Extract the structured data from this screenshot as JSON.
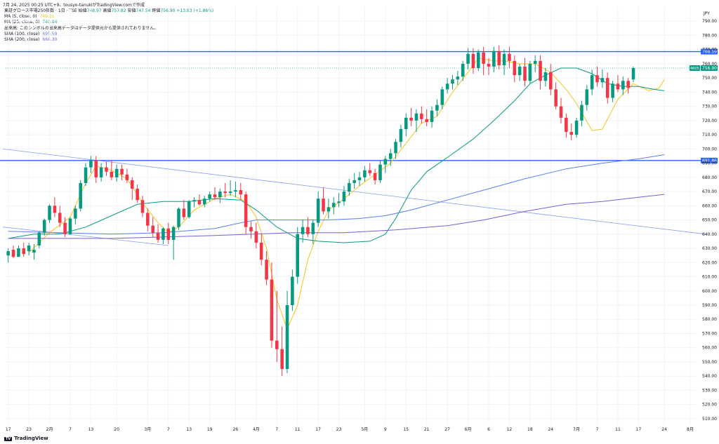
{
  "header": {
    "stamp": "7月 24, 2025 00:25 UTC+9、tousyo-tanukiがTradingView.comで作成"
  },
  "legend": {
    "symbol": "東証グロース市場250指数 · 1日 · TSE",
    "open_label": "始値",
    "open": "748.97",
    "high_label": "高値",
    "high": "757.82",
    "low_label": "安値",
    "low": "747.54",
    "close_label": "終値",
    "close": "756.90",
    "change": "+13.83 (+1.86%)",
    "rows": [
      {
        "label": "MA (5, close, 0)",
        "value": "749.21",
        "color": "#f5c518"
      },
      {
        "label": "MA (25, close, 0)",
        "value": "740.84",
        "color": "#089981"
      },
      {
        "label": "出来高: このシンボルの出来高データはデータ提供元から提供されておりません。",
        "value": "",
        "color": "#131722"
      },
      {
        "label": "SMA (100, close)",
        "value": "695.59",
        "color": "#5b7ff1"
      },
      {
        "label": "SMA (200, close)",
        "value": "668.30",
        "color": "#7c5cd6"
      }
    ]
  },
  "branding": {
    "logo_text": "TradingView",
    "logo_mark": "TV"
  },
  "chart_data": {
    "type": "candlestick",
    "currency": "JPY",
    "ylim": [
      506,
      800
    ],
    "y_ticks": [
      510,
      520,
      530,
      540,
      550,
      560,
      570,
      580,
      590,
      600,
      610,
      620,
      630,
      640,
      650,
      660,
      670,
      680,
      690,
      700,
      710,
      720,
      730,
      740,
      750,
      760,
      770,
      780,
      790
    ],
    "x_ticks": [
      {
        "label": "17",
        "i": 0
      },
      {
        "label": "23",
        "i": 4
      },
      {
        "label": "2月",
        "i": 8
      },
      {
        "label": "7",
        "i": 12
      },
      {
        "label": "13",
        "i": 16
      },
      {
        "label": "20",
        "i": 21
      },
      {
        "label": "3月",
        "i": 27
      },
      {
        "label": "7",
        "i": 31
      },
      {
        "label": "13",
        "i": 35
      },
      {
        "label": "19",
        "i": 39
      },
      {
        "label": "26",
        "i": 44
      },
      {
        "label": "4月",
        "i": 48
      },
      {
        "label": "7",
        "i": 52
      },
      {
        "label": "11",
        "i": 56
      },
      {
        "label": "17",
        "i": 60
      },
      {
        "label": "23",
        "i": 64
      },
      {
        "label": "5月",
        "i": 69
      },
      {
        "label": "9",
        "i": 73
      },
      {
        "label": "15",
        "i": 77
      },
      {
        "label": "21",
        "i": 81
      },
      {
        "label": "27",
        "i": 85
      },
      {
        "label": "6月",
        "i": 89
      },
      {
        "label": "6",
        "i": 93
      },
      {
        "label": "12",
        "i": 97
      },
      {
        "label": "18",
        "i": 101
      },
      {
        "label": "24",
        "i": 105
      },
      {
        "label": "7月",
        "i": 110
      },
      {
        "label": "7",
        "i": 114
      },
      {
        "label": "11",
        "i": 118
      },
      {
        "label": "17",
        "i": 122
      },
      {
        "label": "24",
        "i": 127
      },
      {
        "label": "8月",
        "i": 132
      }
    ],
    "candles": [
      [
        625,
        630,
        620,
        628
      ],
      [
        629,
        632,
        623,
        624
      ],
      [
        624,
        632,
        624,
        630
      ],
      [
        630,
        634,
        624,
        626
      ],
      [
        628,
        634,
        625,
        632
      ],
      [
        627,
        633,
        622,
        629
      ],
      [
        632,
        642,
        630,
        641
      ],
      [
        641,
        651,
        639,
        650
      ],
      [
        650,
        661,
        648,
        660
      ],
      [
        660,
        666,
        652,
        655
      ],
      [
        655,
        660,
        645,
        648
      ],
      [
        648,
        652,
        638,
        640
      ],
      [
        640,
        652,
        640,
        651
      ],
      [
        651,
        660,
        647,
        658
      ],
      [
        658,
        678,
        656,
        676
      ],
      [
        676,
        690,
        674,
        687
      ],
      [
        687,
        695,
        683,
        692
      ],
      [
        692,
        695,
        676,
        680
      ],
      [
        680,
        690,
        677,
        687
      ],
      [
        687,
        691,
        681,
        684
      ],
      [
        684,
        692,
        678,
        680
      ],
      [
        680,
        689,
        677,
        686
      ],
      [
        686,
        689,
        678,
        682
      ],
      [
        682,
        686,
        676,
        678
      ],
      [
        678,
        680,
        664,
        672
      ],
      [
        672,
        675,
        662,
        664
      ],
      [
        664,
        667,
        652,
        655
      ],
      [
        655,
        658,
        642,
        646
      ],
      [
        646,
        652,
        638,
        641
      ],
      [
        641,
        647,
        634,
        636
      ],
      [
        636,
        645,
        633,
        644
      ],
      [
        644,
        648,
        633,
        636
      ],
      [
        636,
        646,
        622,
        645
      ],
      [
        645,
        659,
        643,
        658
      ],
      [
        658,
        664,
        650,
        652
      ],
      [
        652,
        664,
        651,
        663
      ],
      [
        663,
        666,
        659,
        664
      ],
      [
        664,
        668,
        660,
        661
      ],
      [
        661,
        667,
        659,
        665
      ],
      [
        665,
        670,
        663,
        668
      ],
      [
        668,
        673,
        664,
        666
      ],
      [
        666,
        672,
        662,
        670
      ],
      [
        670,
        676,
        666,
        669
      ],
      [
        669,
        678,
        667,
        670
      ],
      [
        670,
        677,
        666,
        671
      ],
      [
        671,
        676,
        664,
        668
      ],
      [
        668,
        670,
        640,
        645
      ],
      [
        645,
        649,
        637,
        642
      ],
      [
        642,
        648,
        630,
        634
      ],
      [
        634,
        640,
        618,
        622
      ],
      [
        622,
        628,
        604,
        608
      ],
      [
        608,
        620,
        560,
        565
      ],
      [
        565,
        600,
        550,
        559
      ],
      [
        559,
        575,
        540,
        545
      ],
      [
        545,
        600,
        542,
        590
      ],
      [
        590,
        615,
        586,
        610
      ],
      [
        610,
        645,
        605,
        640
      ],
      [
        640,
        650,
        634,
        645
      ],
      [
        645,
        652,
        638,
        640
      ],
      [
        640,
        650,
        633,
        648
      ],
      [
        648,
        670,
        645,
        665
      ],
      [
        665,
        673,
        654,
        656
      ],
      [
        656,
        665,
        651,
        659
      ],
      [
        659,
        666,
        654,
        662
      ],
      [
        662,
        669,
        659,
        663
      ],
      [
        663,
        674,
        660,
        670
      ],
      [
        670,
        679,
        667,
        676
      ],
      [
        676,
        683,
        672,
        678
      ],
      [
        678,
        684,
        674,
        680
      ],
      [
        680,
        688,
        677,
        685
      ],
      [
        685,
        690,
        681,
        683
      ],
      [
        683,
        686,
        675,
        678
      ],
      [
        678,
        692,
        676,
        689
      ],
      [
        689,
        695,
        683,
        693
      ],
      [
        693,
        700,
        688,
        697
      ],
      [
        697,
        707,
        693,
        705
      ],
      [
        705,
        717,
        701,
        714
      ],
      [
        714,
        725,
        709,
        722
      ],
      [
        722,
        729,
        716,
        720
      ],
      [
        720,
        728,
        712,
        725
      ],
      [
        725,
        730,
        718,
        721
      ],
      [
        721,
        728,
        716,
        719
      ],
      [
        719,
        730,
        715,
        727
      ],
      [
        727,
        735,
        723,
        731
      ],
      [
        731,
        744,
        728,
        742
      ],
      [
        742,
        750,
        739,
        746
      ],
      [
        746,
        752,
        742,
        749
      ],
      [
        749,
        755,
        745,
        751
      ],
      [
        751,
        762,
        748,
        760
      ],
      [
        760,
        771,
        756,
        767
      ],
      [
        767,
        771,
        753,
        757
      ],
      [
        757,
        770,
        755,
        768
      ],
      [
        768,
        772,
        752,
        760
      ],
      [
        760,
        764,
        752,
        758
      ],
      [
        758,
        772,
        754,
        769
      ],
      [
        769,
        773,
        756,
        759
      ],
      [
        759,
        770,
        752,
        767
      ],
      [
        767,
        772,
        757,
        762
      ],
      [
        762,
        766,
        747,
        752
      ],
      [
        752,
        760,
        748,
        758
      ],
      [
        758,
        764,
        744,
        748
      ],
      [
        748,
        762,
        746,
        760
      ],
      [
        760,
        766,
        754,
        762
      ],
      [
        762,
        766,
        742,
        748
      ],
      [
        748,
        757,
        744,
        754
      ],
      [
        754,
        760,
        738,
        742
      ],
      [
        742,
        747,
        728,
        730
      ],
      [
        730,
        736,
        718,
        722
      ],
      [
        722,
        725,
        708,
        712
      ],
      [
        712,
        718,
        706,
        710
      ],
      [
        710,
        722,
        708,
        720
      ],
      [
        720,
        734,
        716,
        731
      ],
      [
        731,
        745,
        727,
        742
      ],
      [
        742,
        756,
        738,
        752
      ],
      [
        752,
        758,
        744,
        747
      ],
      [
        747,
        756,
        743,
        750
      ],
      [
        750,
        754,
        732,
        736
      ],
      [
        736,
        748,
        733,
        746
      ],
      [
        746,
        752,
        740,
        742
      ],
      [
        742,
        751,
        738,
        748
      ],
      [
        748,
        750,
        739,
        743
      ],
      [
        749,
        758,
        747,
        757
      ]
    ],
    "ma_series": [
      {
        "name": "MA (5, close, 0)",
        "color": "#f5c518",
        "points": [
          [
            4,
            627
          ],
          [
            8,
            641
          ],
          [
            12,
            652
          ],
          [
            15,
            676
          ],
          [
            17,
            688
          ],
          [
            20,
            685
          ],
          [
            23,
            679
          ],
          [
            26,
            662
          ],
          [
            29,
            648
          ],
          [
            31,
            641
          ],
          [
            33,
            645
          ],
          [
            36,
            657
          ],
          [
            40,
            665
          ],
          [
            43,
            668
          ],
          [
            46,
            663
          ],
          [
            48,
            652
          ],
          [
            50,
            630
          ],
          [
            52,
            594
          ],
          [
            54,
            573
          ],
          [
            56,
            590
          ],
          [
            58,
            622
          ],
          [
            60,
            642
          ],
          [
            62,
            657
          ],
          [
            65,
            665
          ],
          [
            68,
            674
          ],
          [
            71,
            682
          ],
          [
            74,
            690
          ],
          [
            77,
            704
          ],
          [
            80,
            718
          ],
          [
            83,
            723
          ],
          [
            86,
            740
          ],
          [
            89,
            754
          ],
          [
            91,
            764
          ],
          [
            94,
            762
          ],
          [
            96,
            762
          ],
          [
            99,
            760
          ],
          [
            102,
            760
          ],
          [
            105,
            754
          ],
          [
            108,
            742
          ],
          [
            110,
            732
          ],
          [
            113,
            713
          ],
          [
            115,
            714
          ],
          [
            118,
            735
          ],
          [
            121,
            746
          ],
          [
            124,
            741
          ],
          [
            126,
            743
          ],
          [
            127,
            749
          ]
        ]
      },
      {
        "name": "MA (25, close, 0)",
        "color": "#089981",
        "points": [
          [
            0,
            637
          ],
          [
            5,
            640
          ],
          [
            10,
            640
          ],
          [
            15,
            645
          ],
          [
            20,
            653
          ],
          [
            25,
            661
          ],
          [
            30,
            663
          ],
          [
            35,
            663
          ],
          [
            40,
            665
          ],
          [
            45,
            664
          ],
          [
            48,
            657
          ],
          [
            52,
            645
          ],
          [
            56,
            637
          ],
          [
            60,
            635
          ],
          [
            65,
            634
          ],
          [
            70,
            635
          ],
          [
            73,
            640
          ],
          [
            75,
            651
          ],
          [
            78,
            671
          ],
          [
            81,
            684
          ],
          [
            85,
            694
          ],
          [
            90,
            707
          ],
          [
            94,
            720
          ],
          [
            98,
            734
          ],
          [
            101,
            746
          ],
          [
            104,
            752
          ],
          [
            107,
            757
          ],
          [
            110,
            757
          ],
          [
            113,
            753
          ],
          [
            116,
            746
          ],
          [
            119,
            744
          ],
          [
            122,
            744
          ],
          [
            125,
            742
          ],
          [
            127,
            741
          ]
        ]
      },
      {
        "name": "SMA (100, close)",
        "color": "#5b7ff1",
        "points": [
          [
            0,
            642
          ],
          [
            10,
            641
          ],
          [
            20,
            640
          ],
          [
            30,
            641
          ],
          [
            40,
            644
          ],
          [
            45,
            648
          ],
          [
            48,
            650
          ],
          [
            55,
            650
          ],
          [
            62,
            650
          ],
          [
            68,
            651
          ],
          [
            73,
            653
          ],
          [
            78,
            657
          ],
          [
            85,
            664
          ],
          [
            92,
            671
          ],
          [
            100,
            679
          ],
          [
            108,
            686
          ],
          [
            115,
            690
          ],
          [
            122,
            693
          ],
          [
            127,
            696
          ]
        ]
      },
      {
        "name": "SMA (200, close)",
        "color": "#7c5cd6",
        "points": [
          [
            0,
            637
          ],
          [
            20,
            637
          ],
          [
            40,
            639
          ],
          [
            55,
            641
          ],
          [
            65,
            641
          ],
          [
            75,
            643
          ],
          [
            85,
            646
          ],
          [
            92,
            650
          ],
          [
            100,
            656
          ],
          [
            108,
            661
          ],
          [
            115,
            663
          ],
          [
            122,
            666
          ],
          [
            127,
            668
          ]
        ]
      }
    ],
    "trendlines": [
      {
        "color": "#5b7ff1",
        "from": [
          -1,
          700
        ],
        "to": [
          135,
          640
        ]
      },
      {
        "color": "#5b7ff1",
        "from": [
          -1,
          645
        ],
        "to": [
          31,
          632
        ]
      }
    ],
    "hlines": [
      {
        "price": 768.59,
        "color": "#2962ff",
        "label": "768.59"
      },
      {
        "price": 691.86,
        "color": "#2962ff",
        "label": "691.86"
      }
    ],
    "last_price": {
      "label": "756.90",
      "tag": "4605",
      "color": "#089981"
    }
  }
}
